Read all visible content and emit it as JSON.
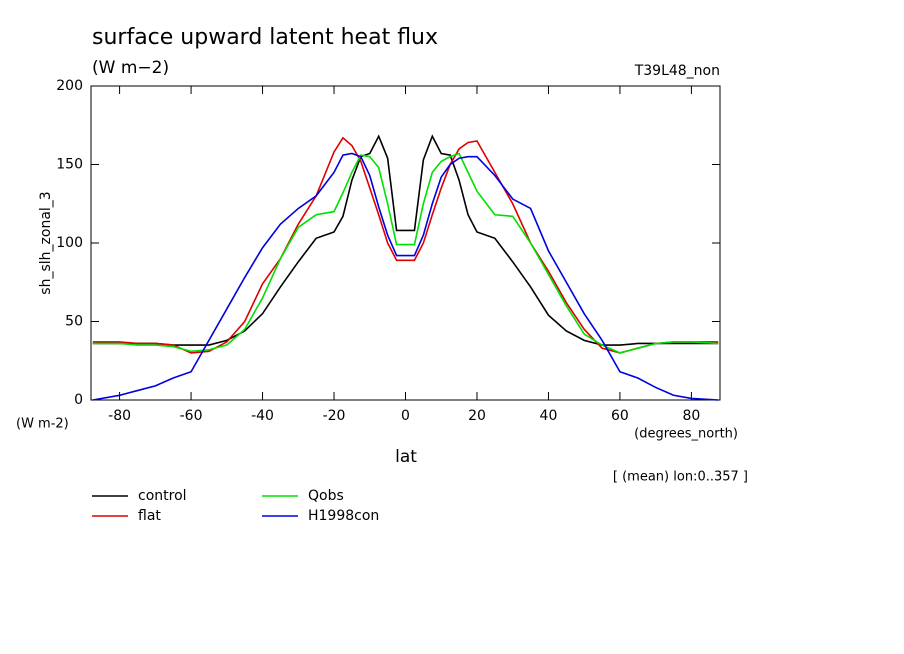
{
  "chart_data": {
    "type": "line",
    "title": "surface upward latent heat flux",
    "subtitle": "(W m−2)",
    "run_label": "T39L48_non",
    "y_label": "sh_slh_zonal_3",
    "y_units": "(W m-2)",
    "x_units": "(degrees_north)",
    "x_label": "lat",
    "note": "[ (mean) lon:0..357 ]",
    "x": [
      -87.5,
      -80,
      -75,
      -70,
      -65,
      -60,
      -55,
      -50,
      -45,
      -40,
      -35,
      -30,
      -25,
      -20,
      -17.5,
      -15,
      -12.5,
      -10,
      -7.5,
      -5,
      -2.5,
      0,
      2.5,
      5,
      7.5,
      10,
      12.5,
      15,
      17.5,
      20,
      25,
      30,
      35,
      40,
      45,
      50,
      55,
      60,
      65,
      70,
      75,
      80,
      87.5
    ],
    "series": [
      {
        "name": "control",
        "color": "#000000",
        "values": [
          36,
          36,
          36,
          36,
          35,
          35,
          35,
          38,
          44,
          55,
          72,
          88,
          103,
          107,
          117,
          140,
          155,
          157,
          168,
          154,
          108,
          108,
          108,
          153,
          168,
          157,
          156,
          140,
          118,
          107,
          103,
          88,
          72,
          54,
          44,
          38,
          35,
          35,
          36,
          36,
          36,
          36,
          36
        ]
      },
      {
        "name": "flat",
        "color": "#e00000",
        "values": [
          37,
          37,
          36,
          36,
          35,
          30,
          31,
          37,
          50,
          74,
          90,
          112,
          130,
          158,
          167,
          162,
          152,
          135,
          118,
          100,
          89,
          89,
          89,
          100,
          118,
          135,
          150,
          160,
          164,
          165,
          145,
          125,
          100,
          82,
          62,
          45,
          33,
          30,
          33,
          36,
          37,
          37,
          37
        ]
      },
      {
        "name": "Qobs",
        "color": "#00e000",
        "values": [
          36,
          36,
          35,
          35,
          34,
          31,
          32,
          35,
          45,
          65,
          90,
          110,
          118,
          120,
          132,
          145,
          156,
          155,
          148,
          125,
          99,
          99,
          99,
          125,
          145,
          152,
          155,
          157,
          145,
          133,
          118,
          117,
          100,
          80,
          60,
          42,
          35,
          30,
          33,
          36,
          37,
          37,
          36
        ]
      },
      {
        "name": "H1998con",
        "color": "#0000e0",
        "values": [
          0,
          3,
          6,
          9,
          14,
          18,
          38,
          58,
          78,
          97,
          112,
          122,
          130,
          145,
          156,
          157,
          155,
          143,
          123,
          105,
          92,
          92,
          92,
          105,
          125,
          142,
          150,
          154,
          155,
          155,
          143,
          128,
          122,
          95,
          75,
          55,
          38,
          18,
          14,
          8,
          3,
          1,
          0
        ]
      }
    ],
    "xlim": [
      -88,
      88
    ],
    "ylim": [
      0,
      200
    ],
    "xticks": [
      -80,
      -60,
      -40,
      -20,
      0,
      20,
      40,
      60,
      80
    ],
    "yticks": [
      0,
      50,
      100,
      150,
      200
    ]
  }
}
